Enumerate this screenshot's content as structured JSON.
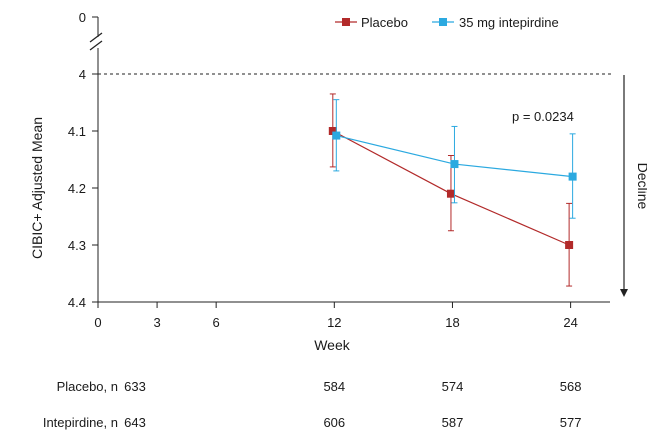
{
  "chart_data": {
    "type": "line",
    "ylabel": "CIBIC+ Adjusted Mean",
    "xlabel": "Week",
    "x_ticks": [
      0,
      3,
      6,
      12,
      18,
      24
    ],
    "xlim": [
      0,
      26
    ],
    "y_top_break_label": "0",
    "y_ticks": [
      4,
      4.1,
      4.2,
      4.3,
      4.4
    ],
    "y_tick_labels": [
      "4",
      "4.1",
      "4.2",
      "4.3",
      "4.4"
    ],
    "ylim": [
      4,
      4.4
    ],
    "y_inverted": true,
    "reference_line": 4,
    "series": [
      {
        "name": "Placebo",
        "color": "#b22a2a",
        "x": [
          12,
          18,
          24
        ],
        "values": [
          4.1,
          4.21,
          4.3
        ],
        "err_low": [
          4.035,
          4.143,
          4.227
        ],
        "err_high": [
          4.163,
          4.275,
          4.372
        ]
      },
      {
        "name": "35 mg intepirdine",
        "color": "#2ba9e0",
        "x": [
          12,
          18,
          24
        ],
        "values": [
          4.108,
          4.158,
          4.18
        ],
        "err_low": [
          4.045,
          4.092,
          4.105
        ],
        "err_high": [
          4.17,
          4.226,
          4.253
        ]
      }
    ],
    "annotation": "p = 0.0234",
    "decline_label": "Decline",
    "counts": [
      {
        "label": "Placebo, n",
        "values": [
          "633",
          "584",
          "574",
          "568"
        ]
      },
      {
        "label": "Intepirdine, n",
        "values": [
          "643",
          "606",
          "587",
          "577"
        ]
      }
    ],
    "count_weeks": [
      0,
      12,
      18,
      24
    ]
  }
}
